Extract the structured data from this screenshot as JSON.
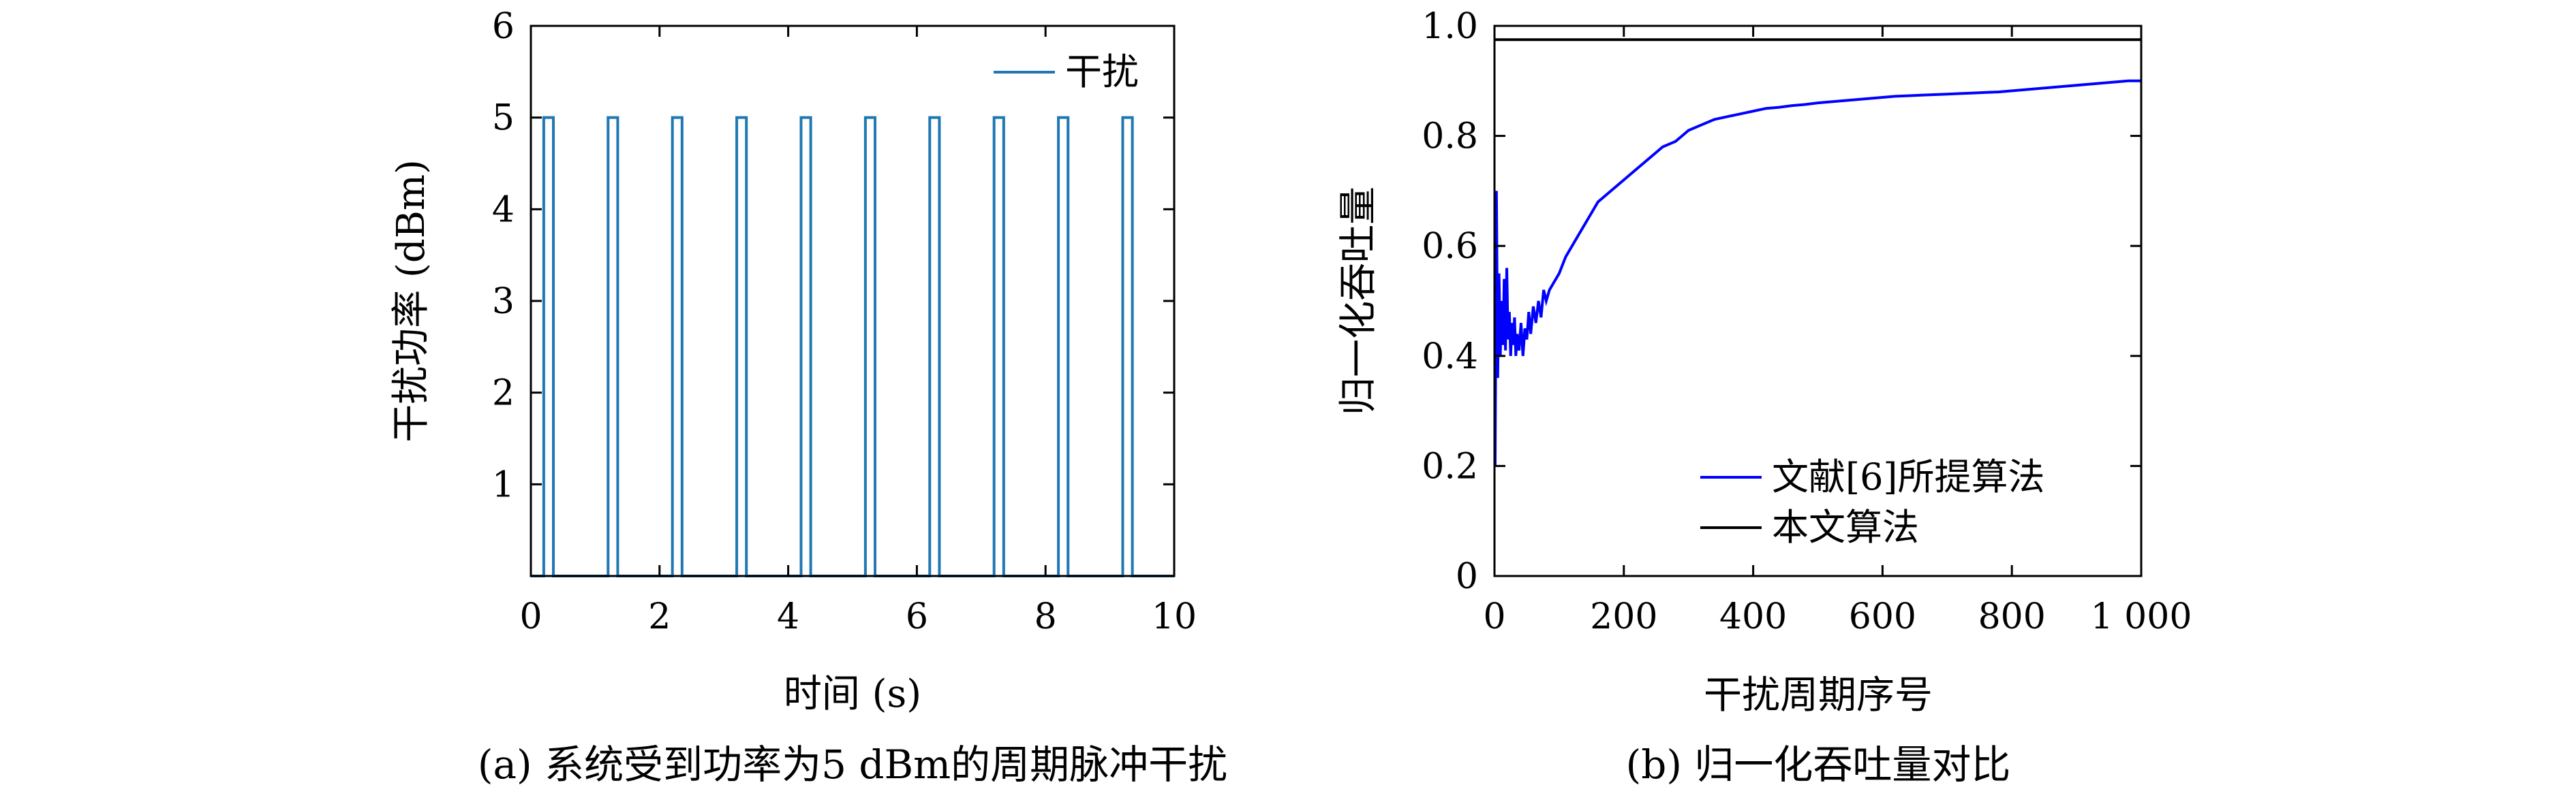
{
  "chart_data": [
    {
      "type": "line",
      "xlabel": "时间 (s)",
      "ylabel": "干扰功率 (dBm)",
      "caption": "(a) 系统受到功率为5 dBm的周期脉冲干扰",
      "xlim": [
        0,
        10
      ],
      "ylim": [
        0,
        6
      ],
      "xticks": [
        0,
        2,
        4,
        6,
        8,
        10
      ],
      "xtick_labels": [
        "0",
        "2",
        "4",
        "6",
        "8",
        "10"
      ],
      "yticks": [
        1,
        2,
        3,
        4,
        5,
        6
      ],
      "ytick_labels": [
        "1",
        "2",
        "3",
        "4",
        "5",
        "6"
      ],
      "legend_position": "top-right",
      "series": [
        {
          "name": "干扰",
          "color": "#1f77b4",
          "step": true,
          "x": [
            0,
            0.2,
            0.2,
            0.35,
            0.35,
            1.2,
            1.2,
            1.35,
            1.35,
            2.2,
            2.2,
            2.35,
            2.35,
            3.2,
            3.2,
            3.35,
            3.35,
            4.2,
            4.2,
            4.35,
            4.35,
            5.2,
            5.2,
            5.35,
            5.35,
            6.2,
            6.2,
            6.35,
            6.35,
            7.2,
            7.2,
            7.35,
            7.35,
            8.2,
            8.2,
            8.35,
            8.35,
            9.2,
            9.2,
            9.35,
            9.35,
            10
          ],
          "y": [
            0,
            0,
            5,
            5,
            0,
            0,
            5,
            5,
            0,
            0,
            5,
            5,
            0,
            0,
            5,
            5,
            0,
            0,
            5,
            5,
            0,
            0,
            5,
            5,
            0,
            0,
            5,
            5,
            0,
            0,
            5,
            5,
            0,
            0,
            5,
            5,
            0,
            0,
            5,
            5,
            0,
            0
          ]
        }
      ]
    },
    {
      "type": "line",
      "xlabel": "干扰周期序号",
      "ylabel": "归一化吞吐量",
      "caption": "(b) 归一化吞吐量对比",
      "xlim": [
        0,
        1000
      ],
      "ylim": [
        0,
        1.0
      ],
      "xticks": [
        0,
        200,
        400,
        600,
        800,
        1000
      ],
      "xtick_labels": [
        "0",
        "200",
        "400",
        "600",
        "800",
        "1 000"
      ],
      "yticks": [
        0,
        0.2,
        0.4,
        0.6,
        0.8,
        1.0
      ],
      "ytick_labels": [
        "0",
        "0.2",
        "0.4",
        "0.6",
        "0.8",
        "1.0"
      ],
      "legend_position": "bottom-right",
      "series": [
        {
          "name": "文献[6]所提算法",
          "color": "#0000ff",
          "x": [
            1,
            3,
            5,
            7,
            9,
            11,
            13,
            15,
            17,
            19,
            21,
            23,
            25,
            27,
            29,
            31,
            33,
            35,
            38,
            41,
            44,
            47,
            50,
            53,
            56,
            60,
            64,
            68,
            72,
            76,
            80,
            85,
            90,
            95,
            100,
            110,
            120,
            130,
            140,
            150,
            160,
            170,
            180,
            190,
            200,
            210,
            220,
            230,
            240,
            250,
            260,
            270,
            280,
            290,
            300,
            320,
            340,
            360,
            380,
            400,
            420,
            440,
            460,
            480,
            500,
            520,
            540,
            560,
            580,
            600,
            620,
            640,
            660,
            680,
            700,
            720,
            740,
            760,
            780,
            800,
            820,
            840,
            860,
            880,
            900,
            920,
            940,
            960,
            980,
            1000
          ],
          "y": [
            0.2,
            0.7,
            0.36,
            0.55,
            0.4,
            0.5,
            0.42,
            0.54,
            0.41,
            0.56,
            0.43,
            0.48,
            0.4,
            0.46,
            0.42,
            0.47,
            0.4,
            0.44,
            0.41,
            0.46,
            0.4,
            0.45,
            0.43,
            0.48,
            0.44,
            0.49,
            0.46,
            0.5,
            0.47,
            0.52,
            0.5,
            0.52,
            0.53,
            0.54,
            0.55,
            0.58,
            0.6,
            0.62,
            0.64,
            0.66,
            0.68,
            0.69,
            0.7,
            0.71,
            0.72,
            0.73,
            0.74,
            0.75,
            0.76,
            0.77,
            0.78,
            0.785,
            0.79,
            0.8,
            0.81,
            0.82,
            0.83,
            0.835,
            0.84,
            0.845,
            0.85,
            0.852,
            0.855,
            0.857,
            0.86,
            0.862,
            0.864,
            0.866,
            0.868,
            0.87,
            0.872,
            0.873,
            0.874,
            0.875,
            0.876,
            0.877,
            0.878,
            0.879,
            0.88,
            0.882,
            0.884,
            0.886,
            0.888,
            0.89,
            0.892,
            0.894,
            0.896,
            0.898,
            0.9,
            0.9
          ]
        },
        {
          "name": "本文算法",
          "color": "#000000",
          "x": [
            0,
            1000
          ],
          "y": [
            0.975,
            0.975
          ]
        }
      ]
    }
  ]
}
